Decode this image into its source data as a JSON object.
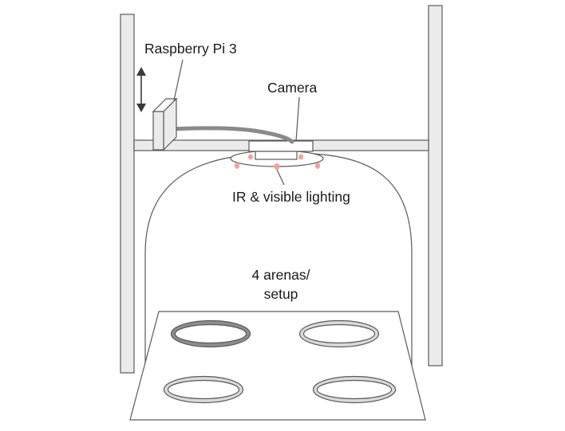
{
  "labels": {
    "controller": "Raspberry Pi 3",
    "camera": "Camera",
    "lighting": "IR & visible lighting",
    "arenas_line1": "4 arenas/",
    "arenas_line2": "setup"
  },
  "colors": {
    "stroke": "#5a5a5a",
    "frame_fill": "#ebebeb",
    "cable": "#8a8a8a",
    "led": "#f2a0a0",
    "arena_ring_highlight": "#8c8c8c",
    "arena_ring": "#d9d9d9"
  },
  "icons": {
    "height_adjust": "double-arrow-vertical-icon"
  }
}
